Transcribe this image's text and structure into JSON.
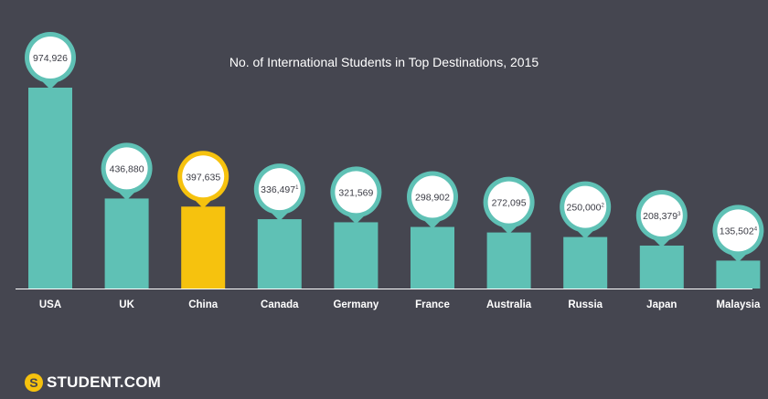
{
  "chart_data": {
    "type": "bar",
    "title": "No. of International Students in Top Destinations, 2015",
    "categories": [
      "USA",
      "UK",
      "China",
      "Canada",
      "Germany",
      "France",
      "Australia",
      "Russia",
      "Japan",
      "Malaysia"
    ],
    "values": [
      974926,
      436880,
      397635,
      336497,
      321569,
      298902,
      272095,
      250000,
      208379,
      135502
    ],
    "labels": [
      "974,926",
      "436,880",
      "397,635",
      "336,497",
      "321,569",
      "298,902",
      "272,095",
      "250,000",
      "208,379",
      "135,502"
    ],
    "footnotes": [
      "",
      "",
      "",
      "1",
      "",
      "",
      "",
      "2",
      "3",
      "4"
    ],
    "highlight": "China",
    "colors": {
      "background": "#454650",
      "bar": "#5fc1b5",
      "highlight": "#f6c20e",
      "bubble_fill": "#ffffff",
      "label_text": "#3a3b44",
      "axis": "#ffffff"
    }
  },
  "brand": {
    "logo_text": "STUDENT.COM",
    "logo_mark": "S"
  }
}
